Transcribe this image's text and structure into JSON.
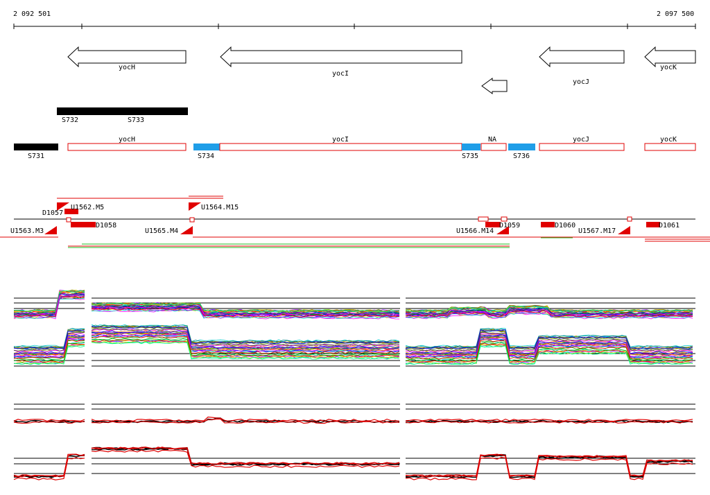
{
  "coordinates": {
    "start": "2 092 501",
    "end": "2 097 500"
  },
  "genes": [
    {
      "name": "yocH",
      "strand": "-"
    },
    {
      "name": "yocI",
      "strand": "-"
    },
    {
      "name": "",
      "strand": "-"
    },
    {
      "name": "yocJ",
      "strand": "-"
    },
    {
      "name": "yocK",
      "strand": "-"
    }
  ],
  "upper_segments": [
    {
      "label_a": "S732",
      "label_b": "S733"
    }
  ],
  "segments": [
    {
      "label": "S731",
      "type": "black"
    },
    {
      "label": "yocH",
      "type": "outline"
    },
    {
      "label": "S734",
      "type": "blue"
    },
    {
      "label": "yocI",
      "type": "outline"
    },
    {
      "label": "S735",
      "type": "blue"
    },
    {
      "label": "NA",
      "type": "outline"
    },
    {
      "label": "S736",
      "type": "blue"
    },
    {
      "label": "yocJ",
      "type": "outline"
    },
    {
      "label": "yocK",
      "type": "outline"
    }
  ],
  "features": [
    "D1057",
    "U1562.M5",
    "U1564.M15",
    "U1563.M3",
    "D1058",
    "U1565.M4",
    "U1566.M14",
    "D1059",
    "D1060",
    "U1567.M17",
    "D1061"
  ],
  "colors": {
    "gene_arrow": "#000000",
    "outline_box": "#e00000",
    "segment_blue": "#1f9ee8",
    "segment_black": "#000000",
    "feature_red": "#ff0000",
    "green_line": "#22bb22"
  }
}
